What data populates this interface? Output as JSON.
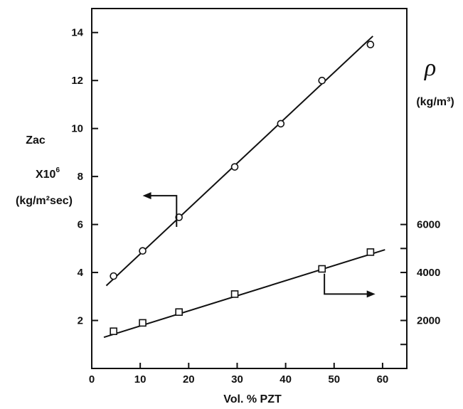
{
  "chart_data": {
    "type": "scatter",
    "title": "",
    "xlabel": "Vol.  %   PZT",
    "xlim": [
      0,
      65
    ],
    "xticks": [
      0,
      10,
      20,
      30,
      40,
      50,
      60
    ],
    "grid": false,
    "legend": "none",
    "left_axis": {
      "label_lines": [
        "Zac",
        "X10^6",
        "(kg/m²sec)"
      ],
      "ylim": [
        0,
        15
      ],
      "ticks": [
        2,
        4,
        6,
        8,
        10,
        12,
        14
      ]
    },
    "right_axis": {
      "symbol": "ρ",
      "unit": "(kg/m³)",
      "ylim": [
        0,
        15000
      ],
      "ticks": [
        2000,
        4000,
        6000
      ],
      "minor_ticks": [
        1000,
        3000,
        5000
      ]
    },
    "series": [
      {
        "axis": "left",
        "marker": "circle",
        "x": [
          4.5,
          10.5,
          18,
          29.5,
          39,
          47.5,
          57.5
        ],
        "y": [
          3.85,
          4.9,
          6.3,
          8.4,
          10.2,
          12.0,
          13.5
        ],
        "fit": {
          "x": [
            3,
            58
          ],
          "y": [
            3.45,
            13.85
          ]
        }
      },
      {
        "axis": "right",
        "marker": "square",
        "x": [
          4.5,
          10.5,
          18,
          29.5,
          47.5,
          57.5
        ],
        "y": [
          1550,
          1900,
          2350,
          3100,
          4150,
          4850
        ],
        "fit": {
          "x": [
            2.5,
            60.5
          ],
          "y": [
            1300,
            4950
          ]
        }
      }
    ],
    "annotations": [
      {
        "kind": "arrow",
        "points_to": "left-axis",
        "near_series": 0
      },
      {
        "kind": "arrow",
        "points_to": "right-axis",
        "near_series": 1
      }
    ]
  }
}
